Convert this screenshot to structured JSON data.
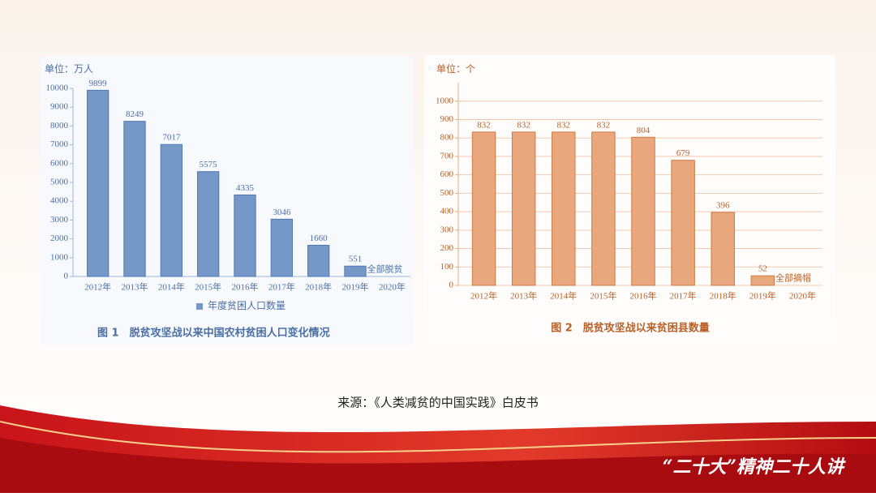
{
  "chart_data": [
    {
      "type": "bar",
      "unit": "单位：万人",
      "title": "图 1　脱贫攻坚战以来中国农村贫困人口变化情况",
      "categories": [
        "2012年",
        "2013年",
        "2014年",
        "2015年",
        "2016年",
        "2017年",
        "2018年",
        "2019年",
        "2020年"
      ],
      "series": [
        {
          "name": "年度贫困人口数量",
          "color": "#7598c8",
          "values": [
            9899,
            8249,
            7017,
            5575,
            4335,
            3046,
            1660,
            551,
            null
          ]
        }
      ],
      "annotation": "全部脱贫",
      "ylim": [
        0,
        10000
      ],
      "yticks": [
        0,
        1000,
        2000,
        3000,
        4000,
        5000,
        6000,
        7000,
        8000,
        9000,
        10000
      ],
      "grid": false,
      "legend": "bottom"
    },
    {
      "type": "bar",
      "unit": "单位：个",
      "title": "图 2　脱贫攻坚战以来贫困县数量",
      "categories": [
        "2012年",
        "2013年",
        "2014年",
        "2015年",
        "2016年",
        "2017年",
        "2018年",
        "2019年",
        "2020年"
      ],
      "values": [
        832,
        832,
        832,
        832,
        804,
        679,
        396,
        52,
        null
      ],
      "color": "#e8a77c",
      "annotation": "全部摘帽",
      "ylim": [
        0,
        1100
      ],
      "yticks": [
        0,
        100,
        200,
        300,
        400,
        500,
        600,
        700,
        800,
        900,
        1000
      ],
      "grid": true
    }
  ],
  "source": "来源：《人类减贫的中国实践》白皮书",
  "footer": "“二十大”精神二十人讲"
}
